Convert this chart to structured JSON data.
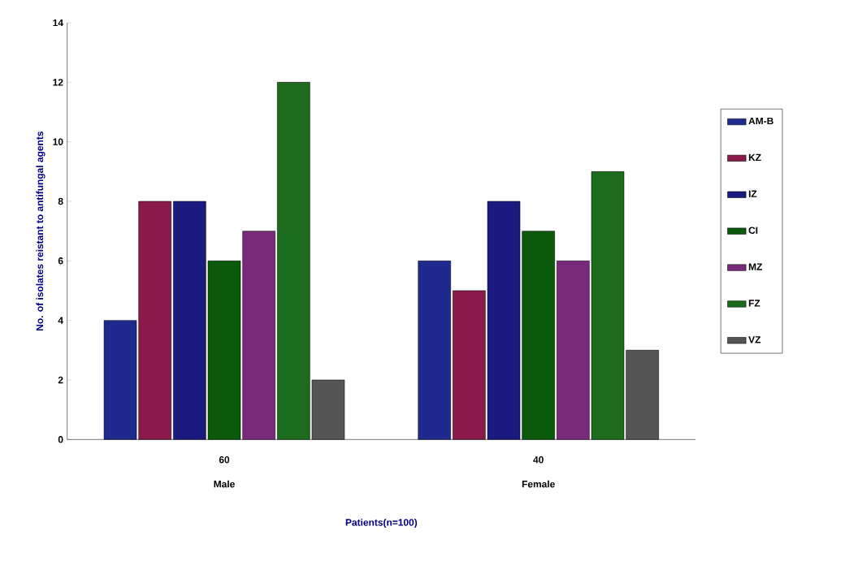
{
  "chart_data": {
    "type": "bar",
    "xlabel": "Patients(n=100)",
    "ylabel": "No. of isolates reistant to antifungal agents",
    "categories": [
      "Male",
      "Female"
    ],
    "annotations": [
      "60",
      "40"
    ],
    "series": [
      {
        "name": "AM-B",
        "color": "#1f2a8f",
        "values": [
          4,
          6
        ]
      },
      {
        "name": "KZ",
        "color": "#8b1a4a",
        "values": [
          8,
          5
        ]
      },
      {
        "name": "IZ",
        "color": "#1a1a80",
        "values": [
          8,
          8
        ]
      },
      {
        "name": "CI",
        "color": "#0b5a0b",
        "values": [
          6,
          7
        ]
      },
      {
        "name": "MZ",
        "color": "#7a2a7a",
        "values": [
          7,
          6
        ]
      },
      {
        "name": "FZ",
        "color": "#1d6b1d",
        "values": [
          12,
          9
        ]
      },
      {
        "name": "VZ",
        "color": "#555555",
        "values": [
          2,
          3
        ]
      }
    ],
    "ylim": [
      0,
      14
    ],
    "yticks": [
      0,
      2,
      4,
      6,
      8,
      10,
      12,
      14
    ],
    "grid": false,
    "legend": "right"
  }
}
